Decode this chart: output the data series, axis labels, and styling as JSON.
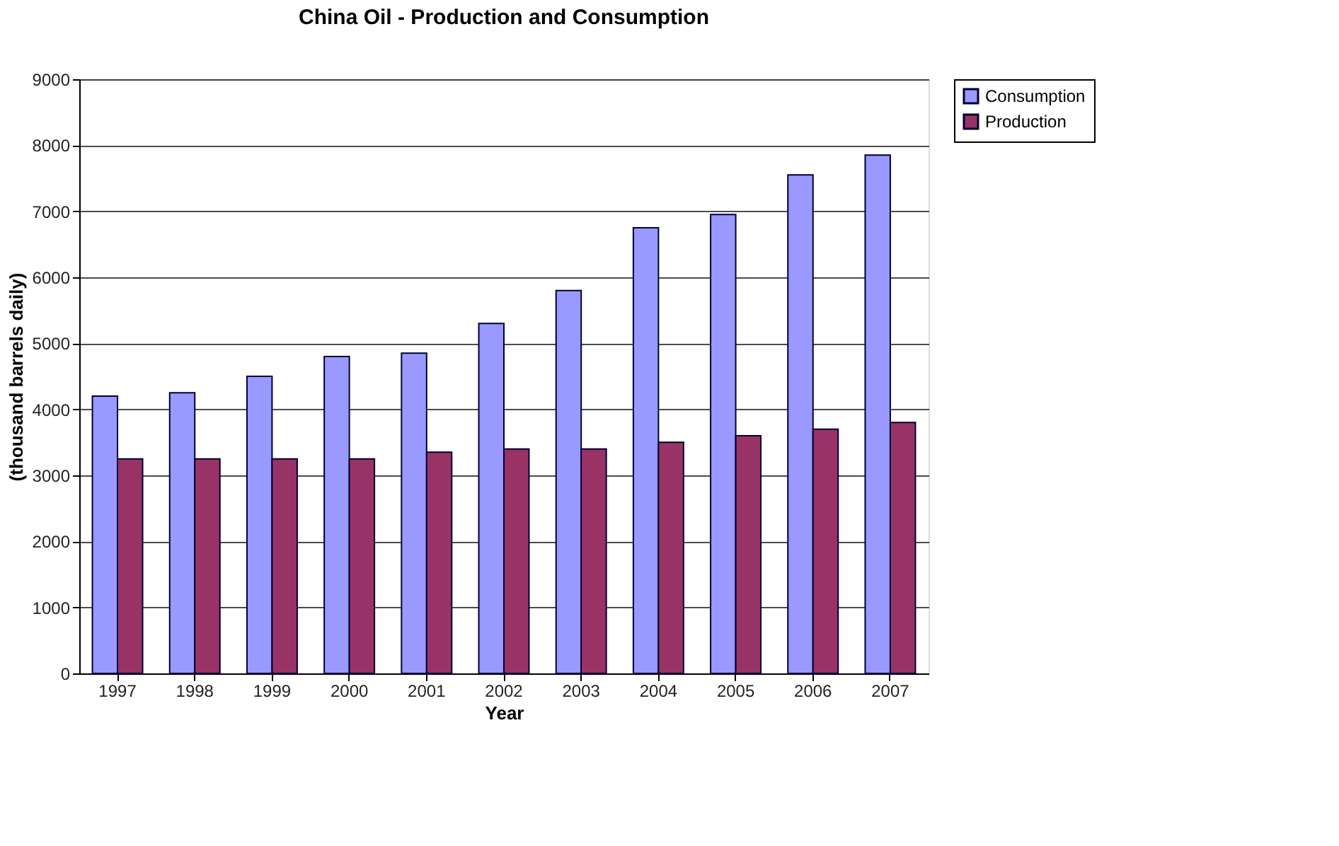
{
  "chart_data": {
    "type": "bar",
    "title": "China Oil - Production and Consumption",
    "xlabel": "Year",
    "ylabel": "(thousand barrels daily)",
    "categories": [
      "1997",
      "1998",
      "1999",
      "2000",
      "2001",
      "2002",
      "2003",
      "2004",
      "2005",
      "2006",
      "2007"
    ],
    "series": [
      {
        "name": "Consumption",
        "color": "#9999ff",
        "values": [
          4200,
          4250,
          4500,
          4800,
          4850,
          5300,
          5800,
          6750,
          6950,
          7550,
          7850
        ]
      },
      {
        "name": "Production",
        "color": "#993366",
        "values": [
          3250,
          3250,
          3250,
          3250,
          3350,
          3400,
          3400,
          3500,
          3600,
          3700,
          3800
        ]
      }
    ],
    "ylim": [
      0,
      9000
    ],
    "yticks": [
      0,
      1000,
      2000,
      3000,
      4000,
      5000,
      6000,
      7000,
      8000,
      9000
    ],
    "grid": "y",
    "legend": "right"
  }
}
